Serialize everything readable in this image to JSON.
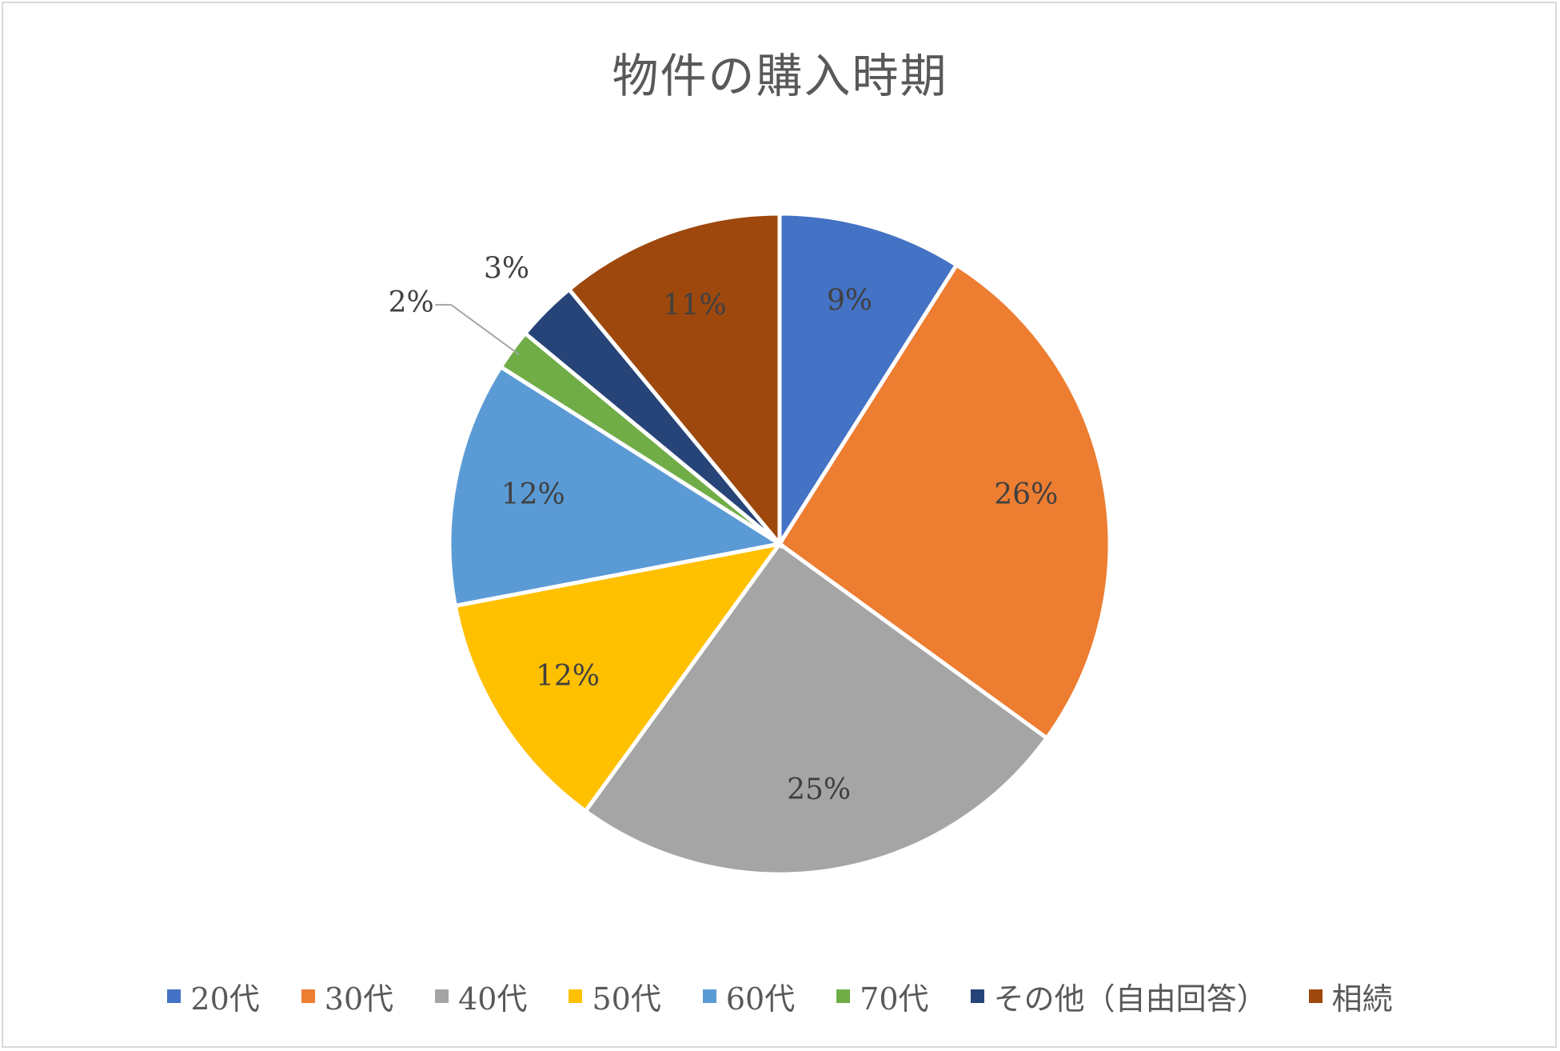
{
  "chart_data": {
    "type": "pie",
    "title": "物件の購入時期",
    "categories": [
      "20代",
      "30代",
      "40代",
      "50代",
      "60代",
      "70代",
      "その他（自由回答）",
      "相続"
    ],
    "values": [
      9,
      26,
      25,
      12,
      12,
      2,
      3,
      11
    ],
    "value_labels": [
      "9%",
      "26%",
      "25%",
      "12%",
      "12%",
      "2%",
      "3%",
      "11%"
    ],
    "colors": [
      "#4472C4",
      "#ED7D31",
      "#A5A5A5",
      "#FFC000",
      "#5B9BD5",
      "#70AD47",
      "#264478",
      "#9E480E"
    ],
    "legend_position": "bottom",
    "start_angle": "12 o'clock",
    "direction": "clockwise"
  }
}
